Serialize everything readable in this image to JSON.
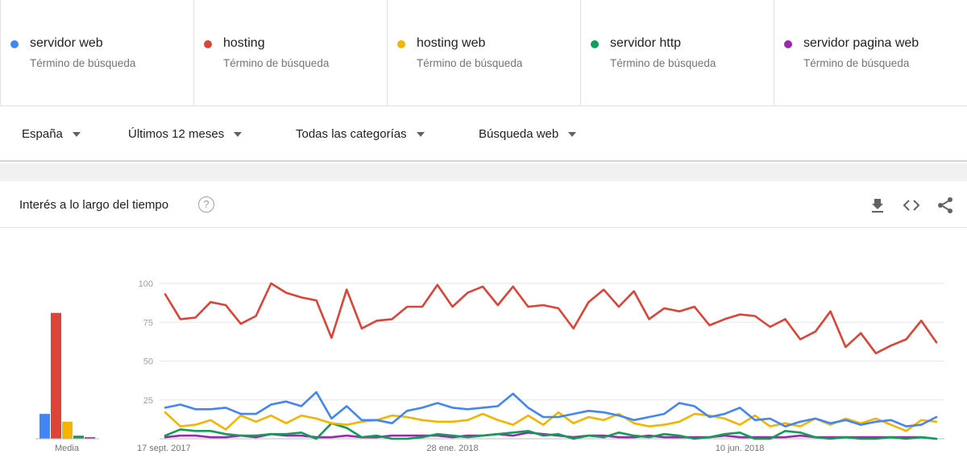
{
  "terms": [
    {
      "name": "servidor web",
      "sub": "Término de búsqueda",
      "color": "#4285f4"
    },
    {
      "name": "hosting",
      "sub": "Término de búsqueda",
      "color": "#db4437"
    },
    {
      "name": "hosting web",
      "sub": "Término de búsqueda",
      "color": "#f4b400"
    },
    {
      "name": "servidor http",
      "sub": "Término de búsqueda",
      "color": "#0f9d58"
    },
    {
      "name": "servidor pagina web",
      "sub": "Término de búsqueda",
      "color": "#9c27b0"
    }
  ],
  "filters": {
    "region": "España",
    "period": "Últimos 12 meses",
    "category": "Todas las categorías",
    "search_type": "Búsqueda web"
  },
  "card": {
    "title": "Interés a lo largo del tiempo",
    "help_glyph": "?",
    "icons": [
      "download-icon",
      "embed-icon",
      "share-icon"
    ]
  },
  "chart_data": {
    "type": "line",
    "x_tick_labels": [
      "17 sept. 2017",
      "28 ene. 2018",
      "10 jun. 2018"
    ],
    "x_tick_week_index": [
      0,
      19,
      38
    ],
    "ylim": [
      0,
      100
    ],
    "y_ticks": [
      25,
      50,
      75,
      100
    ],
    "average_label": "Media",
    "averages": [
      16,
      81,
      11,
      2,
      1
    ],
    "series": [
      {
        "name": "hosting",
        "color": "#db4437",
        "values": [
          93,
          77,
          78,
          88,
          86,
          74,
          79,
          100,
          94,
          91,
          89,
          65,
          96,
          71,
          76,
          77,
          85,
          85,
          99,
          85,
          94,
          98,
          86,
          98,
          85,
          86,
          84,
          71,
          88,
          96,
          85,
          95,
          77,
          84,
          82,
          85,
          73,
          77,
          80,
          79,
          72,
          77,
          64,
          69,
          82,
          59,
          68,
          55,
          60,
          64,
          76,
          62
        ]
      },
      {
        "name": "servidor web",
        "color": "#4285f4",
        "values": [
          20,
          22,
          19,
          19,
          20,
          16,
          16,
          22,
          24,
          21,
          30,
          13,
          21,
          12,
          12,
          10,
          18,
          20,
          23,
          20,
          19,
          20,
          21,
          29,
          20,
          14,
          14,
          16,
          18,
          17,
          15,
          12,
          14,
          16,
          23,
          21,
          14,
          16,
          20,
          12,
          13,
          8,
          11,
          13,
          10,
          12,
          9,
          11,
          12,
          8,
          9,
          14
        ]
      },
      {
        "name": "hosting web",
        "color": "#f4b400",
        "values": [
          17,
          8,
          9,
          12,
          6,
          15,
          11,
          15,
          10,
          15,
          13,
          10,
          9,
          11,
          12,
          15,
          14,
          12,
          11,
          11,
          12,
          16,
          12,
          9,
          15,
          9,
          17,
          10,
          14,
          12,
          16,
          10,
          8,
          9,
          11,
          16,
          15,
          13,
          9,
          15,
          8,
          10,
          8,
          13,
          9,
          13,
          10,
          13,
          9,
          5,
          12,
          11
        ]
      },
      {
        "name": "servidor http",
        "color": "#0f9d58",
        "values": [
          2,
          6,
          5,
          5,
          3,
          2,
          2,
          3,
          3,
          4,
          0,
          10,
          7,
          1,
          2,
          0,
          0,
          1,
          3,
          2,
          1,
          2,
          3,
          4,
          5,
          2,
          3,
          0,
          2,
          1,
          4,
          2,
          1,
          3,
          2,
          0,
          1,
          3,
          4,
          0,
          0,
          5,
          4,
          1,
          0,
          1,
          0,
          0,
          1,
          0,
          1,
          0
        ]
      },
      {
        "name": "servidor pagina web",
        "color": "#9c27b0",
        "values": [
          1,
          2,
          2,
          1,
          1,
          2,
          1,
          3,
          2,
          2,
          1,
          1,
          2,
          1,
          1,
          2,
          2,
          2,
          2,
          1,
          2,
          2,
          3,
          2,
          4,
          3,
          2,
          1,
          2,
          2,
          1,
          1,
          2,
          1,
          1,
          1,
          1,
          2,
          1,
          1,
          1,
          1,
          2,
          1,
          1,
          1,
          1,
          1,
          1,
          1,
          1,
          0
        ]
      }
    ]
  }
}
